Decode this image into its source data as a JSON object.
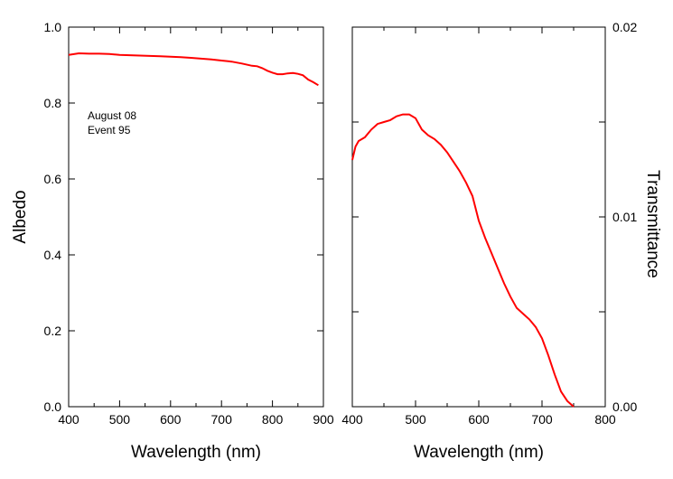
{
  "chart_data": [
    {
      "type": "line",
      "xlabel": "Wavelength (nm)",
      "ylabel": "Albedo",
      "xlim": [
        400,
        900
      ],
      "ylim": [
        0.0,
        1.0
      ],
      "x_ticks": [
        "400",
        "500",
        "600",
        "700",
        "800",
        "900"
      ],
      "y_ticks": [
        "0.0",
        "0.2",
        "0.4",
        "0.6",
        "0.8",
        "1.0"
      ],
      "annotations": [
        "August 08",
        "Event 95"
      ],
      "series_color": "#ff0000",
      "series": [
        {
          "x": [
            400,
            420,
            440,
            460,
            480,
            500,
            520,
            540,
            560,
            580,
            600,
            620,
            640,
            660,
            680,
            700,
            720,
            740,
            760,
            770,
            780,
            790,
            800,
            810,
            820,
            830,
            840,
            850,
            860,
            870,
            880,
            890
          ],
          "y": [
            0.927,
            0.931,
            0.93,
            0.93,
            0.929,
            0.927,
            0.926,
            0.925,
            0.924,
            0.923,
            0.922,
            0.921,
            0.919,
            0.917,
            0.915,
            0.912,
            0.909,
            0.904,
            0.898,
            0.897,
            0.892,
            0.885,
            0.88,
            0.876,
            0.876,
            0.878,
            0.879,
            0.877,
            0.873,
            0.862,
            0.855,
            0.847
          ]
        }
      ]
    },
    {
      "type": "line",
      "xlabel": "Wavelength (nm)",
      "ylabel": "Transmittance",
      "xlim": [
        400,
        800
      ],
      "ylim": [
        0.0,
        0.02
      ],
      "x_ticks": [
        "400",
        "500",
        "600",
        "700",
        "800"
      ],
      "y_ticks": [
        "0.00",
        "0.01",
        "0.02"
      ],
      "y_minor": [
        0.005,
        0.015
      ],
      "series_color": "#ff0000",
      "series": [
        {
          "x": [
            400,
            405,
            410,
            420,
            430,
            440,
            450,
            460,
            470,
            480,
            490,
            500,
            510,
            520,
            530,
            540,
            550,
            560,
            570,
            580,
            590,
            600,
            610,
            620,
            630,
            640,
            650,
            660,
            670,
            680,
            690,
            700,
            710,
            720,
            730,
            740,
            750
          ],
          "y": [
            0.013,
            0.0137,
            0.014,
            0.0142,
            0.0146,
            0.0149,
            0.015,
            0.0151,
            0.0153,
            0.0154,
            0.0154,
            0.0152,
            0.0146,
            0.0143,
            0.0141,
            0.0138,
            0.0134,
            0.0129,
            0.0124,
            0.0118,
            0.0111,
            0.0098,
            0.0089,
            0.0081,
            0.0073,
            0.0065,
            0.0058,
            0.0052,
            0.0049,
            0.0046,
            0.0042,
            0.0036,
            0.0027,
            0.0017,
            0.0008,
            0.0003,
            0.0
          ]
        }
      ]
    }
  ]
}
